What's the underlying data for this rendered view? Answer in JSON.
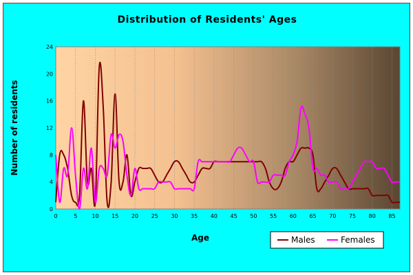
{
  "chart_data": {
    "type": "line",
    "title": "Distribution of Residents' Ages",
    "xlabel": "Age",
    "ylabel": "Number of residents",
    "xlim": [
      0,
      87
    ],
    "ylim": [
      0,
      24
    ],
    "x_ticks": [
      0,
      5,
      10,
      15,
      20,
      25,
      30,
      35,
      40,
      45,
      50,
      55,
      60,
      65,
      70,
      75,
      80,
      85
    ],
    "y_ticks": [
      0,
      4,
      8,
      12,
      16,
      20,
      24
    ],
    "legend_position": "bottom-right",
    "grid": "vertical dotted",
    "series": [
      {
        "name": "Males",
        "color": "#800000",
        "x": [
          0,
          1,
          2,
          3,
          4,
          5,
          6,
          7,
          8,
          9,
          10,
          11,
          12,
          13,
          14,
          15,
          16,
          17,
          18,
          19,
          20,
          21,
          22,
          23,
          24,
          25,
          26,
          27,
          28,
          29,
          30,
          31,
          32,
          33,
          34,
          35,
          36,
          37,
          38,
          39,
          40,
          41,
          42,
          43,
          44,
          45,
          46,
          47,
          48,
          49,
          50,
          51,
          52,
          53,
          54,
          55,
          56,
          57,
          58,
          59,
          60,
          61,
          62,
          63,
          64,
          65,
          66,
          67,
          68,
          69,
          70,
          71,
          72,
          73,
          74,
          75,
          76,
          77,
          78,
          79,
          80,
          81,
          82,
          83,
          84,
          85,
          86,
          87
        ],
        "values": [
          1,
          8,
          8,
          6,
          2,
          1,
          2,
          16,
          4,
          6,
          1,
          21,
          15,
          1,
          4,
          17,
          4,
          4,
          8,
          2,
          4,
          6,
          6,
          6,
          6,
          5,
          4,
          4,
          5,
          6,
          7,
          7,
          6,
          5,
          4,
          4,
          5,
          6,
          6,
          6,
          7,
          7,
          7,
          7,
          7,
          7,
          7,
          7,
          7,
          7,
          7,
          7,
          7,
          6,
          4,
          3,
          3,
          4,
          6,
          7,
          7,
          8,
          9,
          9,
          9,
          8,
          3,
          3,
          4,
          5,
          6,
          6,
          5,
          4,
          3,
          3,
          3,
          3,
          3,
          3,
          2,
          2,
          2,
          2,
          2,
          1,
          1,
          1
        ]
      },
      {
        "name": "Females",
        "color": "#ff00ff",
        "x": [
          0,
          1,
          2,
          3,
          4,
          5,
          6,
          7,
          8,
          9,
          10,
          11,
          12,
          13,
          14,
          15,
          16,
          17,
          18,
          19,
          20,
          21,
          22,
          23,
          24,
          25,
          26,
          27,
          28,
          29,
          30,
          31,
          32,
          33,
          34,
          35,
          36,
          37,
          38,
          39,
          40,
          41,
          42,
          43,
          44,
          45,
          46,
          47,
          48,
          49,
          50,
          51,
          52,
          53,
          54,
          55,
          56,
          57,
          58,
          59,
          60,
          61,
          62,
          63,
          64,
          65,
          66,
          67,
          68,
          69,
          70,
          71,
          72,
          73,
          74,
          75,
          76,
          77,
          78,
          79,
          80,
          81,
          82,
          83,
          84,
          85,
          86,
          87
        ],
        "values": [
          8,
          1,
          6,
          5,
          12,
          5,
          0,
          6,
          3,
          9,
          1,
          6,
          6,
          5,
          11,
          9,
          11,
          10,
          5,
          2,
          6,
          3,
          3,
          3,
          3,
          3,
          4,
          4,
          4,
          4,
          3,
          3,
          3,
          3,
          3,
          3,
          7,
          7,
          7,
          7,
          7,
          7,
          7,
          7,
          7,
          8,
          9,
          9,
          8,
          7,
          7,
          4,
          4,
          4,
          4,
          5,
          5,
          5,
          5,
          7,
          8,
          10,
          15,
          14,
          12,
          6,
          6,
          5,
          5,
          4,
          4,
          4,
          3,
          3,
          3,
          4,
          5,
          6,
          7,
          7,
          7,
          6,
          6,
          6,
          5,
          4,
          4,
          4
        ]
      }
    ]
  }
}
